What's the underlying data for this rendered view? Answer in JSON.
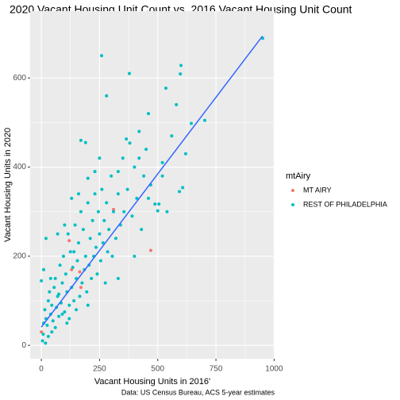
{
  "chart_data": {
    "type": "scatter",
    "title": "2020 Vacant Housing Unit Count vs. 2016 Vacant Housing Unit Count",
    "x_label": "Vacant Housing Units in 2016'",
    "y_label": "Vacant Housing Units in 2020",
    "caption": "Data: US Census Bureau, ACS 5-year estimates",
    "legend_title": "mtAiry",
    "legend_position": "right",
    "grid": true,
    "xlim": [
      -48,
      1002
    ],
    "ylim": [
      -30,
      750
    ],
    "xticks": [
      0,
      250,
      500,
      750,
      1000
    ],
    "yticks": [
      0,
      200,
      400,
      600
    ],
    "series": [
      {
        "name": "MT AIRY",
        "color": "#F8766D",
        "x": [
          0,
          120,
          130,
          165,
          310,
          470,
          170
        ],
        "values": [
          30,
          235,
          170,
          165,
          305,
          213,
          130
        ]
      },
      {
        "name": "REST OF PHILADELPHIA",
        "color": "#00BFC4",
        "x": [
          0,
          5,
          8,
          10,
          15,
          20,
          25,
          30,
          35,
          40,
          45,
          50,
          55,
          60,
          65,
          70,
          75,
          80,
          85,
          90,
          95,
          100,
          105,
          110,
          115,
          120,
          125,
          130,
          135,
          140,
          145,
          150,
          155,
          160,
          165,
          170,
          175,
          180,
          185,
          190,
          195,
          200,
          205,
          210,
          215,
          220,
          225,
          230,
          235,
          240,
          245,
          250,
          255,
          260,
          265,
          270,
          275,
          280,
          285,
          290,
          300,
          305,
          310,
          320,
          330,
          340,
          350,
          355,
          365,
          370,
          380,
          378,
          390,
          400,
          410,
          420,
          430,
          440,
          450,
          460,
          470,
          488,
          500,
          505,
          520,
          535,
          540,
          560,
          580,
          593,
          597,
          600,
          607,
          620,
          644,
          702,
          951,
          259,
          30,
          60,
          90,
          120,
          150,
          45,
          75,
          110,
          140,
          20,
          10,
          170,
          190,
          230,
          330,
          250,
          280,
          420,
          460,
          520,
          400,
          330,
          200,
          18,
          40,
          70,
          100,
          130,
          160,
          200
        ],
        "values": [
          145,
          10,
          25,
          50,
          80,
          60,
          45,
          100,
          120,
          70,
          90,
          55,
          130,
          150,
          85,
          110,
          65,
          180,
          95,
          140,
          200,
          75,
          160,
          120,
          250,
          90,
          210,
          130,
          175,
          100,
          270,
          150,
          190,
          230,
          110,
          300,
          140,
          260,
          170,
          200,
          120,
          320,
          180,
          240,
          150,
          280,
          200,
          340,
          220,
          160,
          300,
          250,
          190,
          350,
          230,
          280,
          140,
          320,
          210,
          260,
          380,
          200,
          300,
          240,
          340,
          270,
          420,
          300,
          463,
          350,
          454,
          610,
          290,
          400,
          330,
          480,
          260,
          380,
          440,
          520,
          360,
          317,
          302,
          317,
          410,
          577,
          300,
          470,
          540,
          345,
          609,
          628,
          354,
          430,
          498,
          505,
          689,
          650,
          20,
          40,
          70,
          60,
          80,
          30,
          115,
          50,
          210,
          240,
          170,
          460,
          455,
          390,
          390,
          420,
          560,
          420,
          330,
          380,
          200,
          150,
          90,
          5,
          150,
          250,
          270,
          330,
          340,
          375
        ]
      }
    ],
    "trend_line": {
      "color": "#3366FF",
      "x": [
        0,
        950
      ],
      "values": [
        41,
        694
      ]
    }
  }
}
